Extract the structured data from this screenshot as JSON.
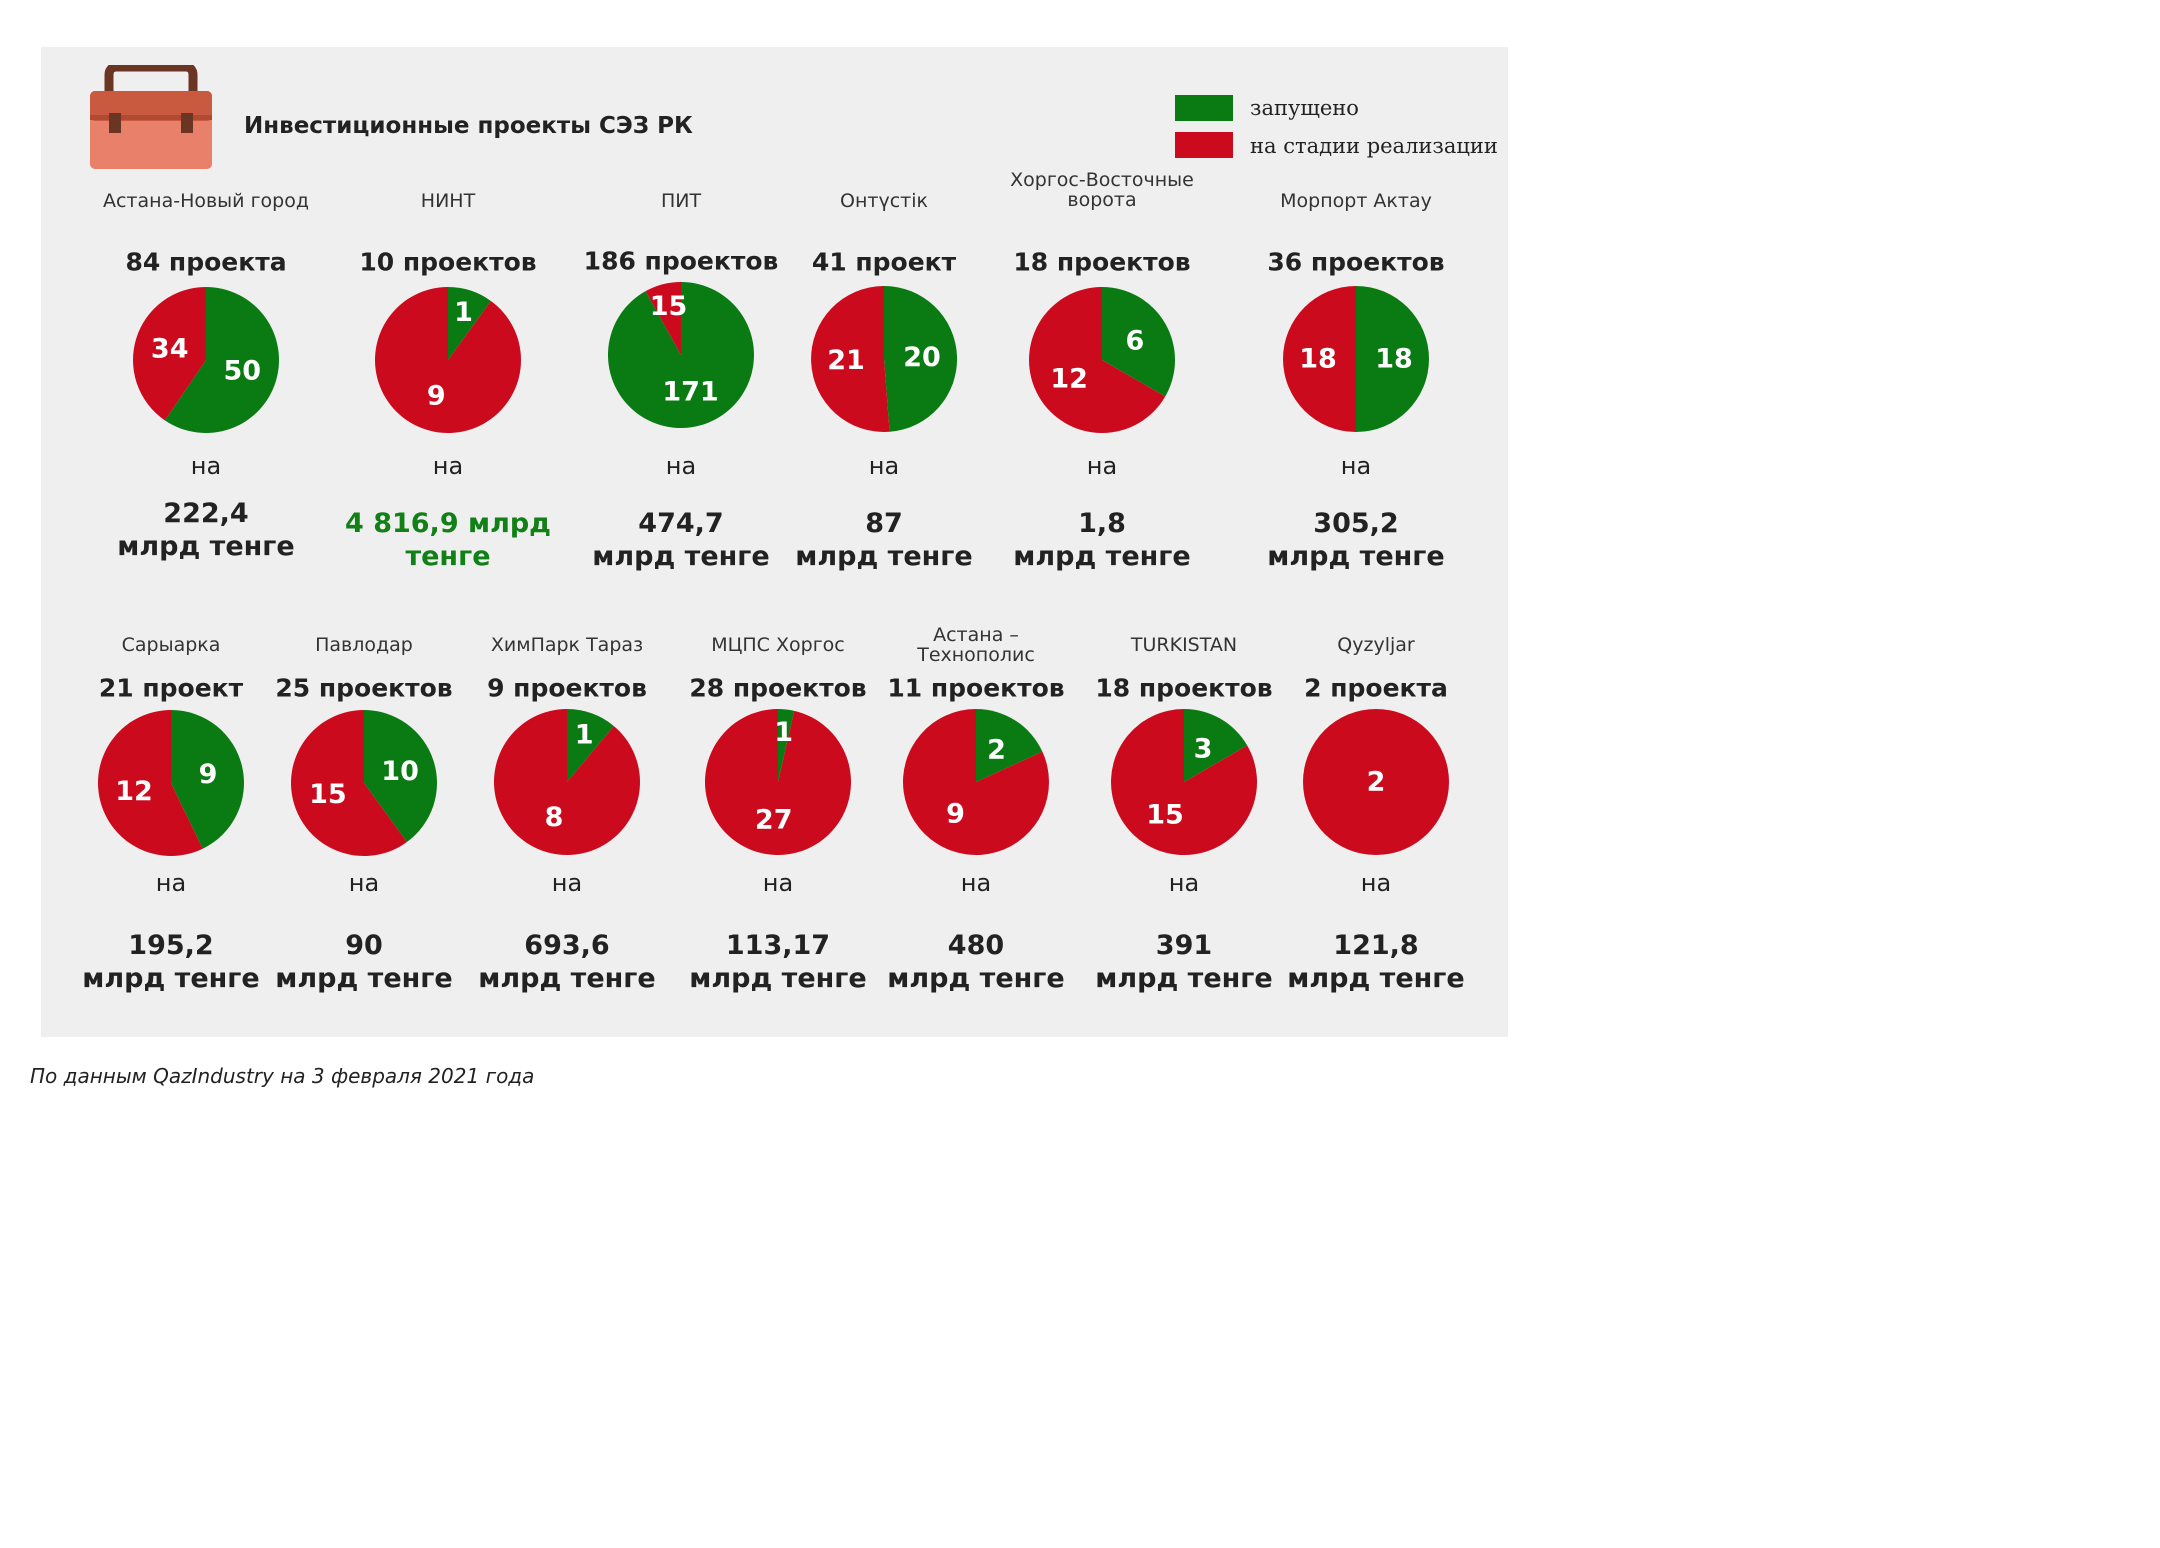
{
  "title": "Инвестиционные проекты СЭЗ РК",
  "icon": "briefcase-icon",
  "colors": {
    "launched": "#0a7b12",
    "in_progress": "#cc0a1e",
    "panel": "#efefef",
    "amount_highlight": "#118016"
  },
  "legend": [
    {
      "label": "запущено",
      "color": "#0a7b12"
    },
    {
      "label": "на стадии реализации",
      "color": "#cc0a1e"
    }
  ],
  "na_label": "на",
  "source": "По данным QazIndustry на 3 февраля 2021 года",
  "chart_data": {
    "type": "pie",
    "title": "Инвестиционные проекты СЭЗ РК",
    "series_labels": [
      "запущено",
      "на стадии реализации"
    ],
    "legend_position": "top-right",
    "zones": [
      {
        "name": [
          "Астана-Новый город"
        ],
        "count_label": "84 проекта",
        "total": 84,
        "launched": 50,
        "in_progress": 34,
        "amount": [
          "222,4",
          "млрд тенге"
        ],
        "highlight": false
      },
      {
        "name": [
          "НИНТ"
        ],
        "count_label": "10 проектов",
        "total": 10,
        "launched": 1,
        "in_progress": 9,
        "amount": [
          "4 816,9 млрд",
          "тенге"
        ],
        "highlight": true
      },
      {
        "name": [
          "ПИТ"
        ],
        "count_label": "186 проектов",
        "total": 186,
        "launched": 171,
        "in_progress": 15,
        "amount": [
          "474,7",
          "млрд тенге"
        ],
        "highlight": false
      },
      {
        "name": [
          "Онтүстік"
        ],
        "count_label": "41 проект",
        "total": 41,
        "launched": 20,
        "in_progress": 21,
        "amount": [
          "87",
          "млрд тенге"
        ],
        "highlight": false
      },
      {
        "name": [
          "Хоргос-Восточные",
          "ворота"
        ],
        "count_label": "18 проектов",
        "total": 18,
        "launched": 6,
        "in_progress": 12,
        "amount": [
          "1,8",
          "млрд тенге"
        ],
        "highlight": false
      },
      {
        "name": [
          "Морпорт Актау"
        ],
        "count_label": "36 проектов",
        "total": 36,
        "launched": 18,
        "in_progress": 18,
        "amount": [
          "305,2",
          "млрд тенге"
        ],
        "highlight": false
      },
      {
        "name": [
          "Сарыарка"
        ],
        "count_label": "21 проект",
        "total": 21,
        "launched": 9,
        "in_progress": 12,
        "amount": [
          "195,2",
          "млрд тенге"
        ],
        "highlight": false
      },
      {
        "name": [
          "Павлодар"
        ],
        "count_label": "25 проектов",
        "total": 25,
        "launched": 10,
        "in_progress": 15,
        "amount": [
          "90",
          "млрд тенге"
        ],
        "highlight": false
      },
      {
        "name": [
          "ХимПарк Тараз"
        ],
        "count_label": "9 проектов",
        "total": 9,
        "launched": 1,
        "in_progress": 8,
        "amount": [
          "693,6",
          "млрд тенге"
        ],
        "highlight": false
      },
      {
        "name": [
          "МЦПС Хоргос"
        ],
        "count_label": "28 проектов",
        "total": 28,
        "launched": 1,
        "in_progress": 27,
        "amount": [
          "113,17",
          "млрд тенге"
        ],
        "highlight": false
      },
      {
        "name": [
          "Астана –",
          "Технополис"
        ],
        "count_label": "11 проектов",
        "total": 11,
        "launched": 2,
        "in_progress": 9,
        "amount": [
          "480",
          "млрд тенге"
        ],
        "highlight": false
      },
      {
        "name": [
          "TURKISTAN"
        ],
        "count_label": "18 проектов",
        "total": 18,
        "launched": 3,
        "in_progress": 15,
        "amount": [
          "391",
          "млрд тенге"
        ],
        "highlight": false
      },
      {
        "name": [
          "Qyzyljar"
        ],
        "count_label": "2 проекта",
        "total": 2,
        "launched": 0,
        "in_progress": 2,
        "amount": [
          "121,8",
          "млрд тенге"
        ],
        "highlight": false
      }
    ]
  }
}
